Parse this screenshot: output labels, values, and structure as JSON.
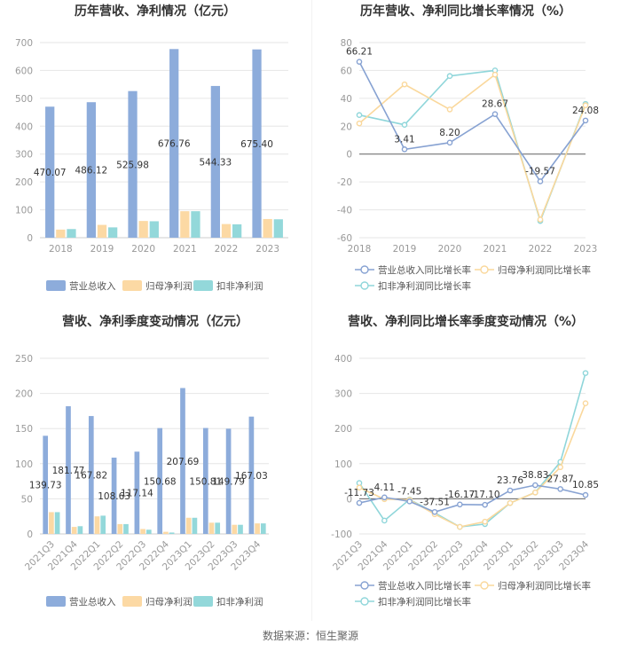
{
  "footer": "数据来源：恒生聚源",
  "colors": {
    "rev": "#8DACDB",
    "net": "#FCD9A4",
    "deduct": "#93D8DA",
    "l_rev": "#87A2D2",
    "l_net": "#FAD89C",
    "l_deduct": "#8FD6DA",
    "grid": "#E6E6E6",
    "axis": "#999999",
    "label": "#333333"
  },
  "chart_data": [
    {
      "id": "annual-bar",
      "type": "bar",
      "title": "历年营收、净利情况（亿元）",
      "categories": [
        "2018",
        "2019",
        "2020",
        "2021",
        "2022",
        "2023"
      ],
      "ylim": [
        0,
        700
      ],
      "yticks": [
        0,
        100,
        200,
        300,
        400,
        500,
        600,
        700
      ],
      "label_series": 0,
      "series": [
        {
          "name": "营业总收入",
          "values": [
            470.07,
            486.12,
            525.98,
            676.76,
            544.33,
            675.4
          ],
          "labels": [
            "470.07",
            "486.12",
            "525.98",
            "676.76",
            "544.33",
            "675.40"
          ]
        },
        {
          "name": "归母净利润",
          "values": [
            29,
            46,
            60,
            95,
            49,
            67
          ]
        },
        {
          "name": "扣非净利润",
          "values": [
            31,
            37,
            59,
            95,
            48,
            66
          ]
        }
      ]
    },
    {
      "id": "annual-line",
      "type": "line",
      "title": "历年营收、净利同比增长率情况（%）",
      "categories": [
        "2018",
        "2019",
        "2020",
        "2021",
        "2022",
        "2023"
      ],
      "ylim": [
        -60,
        80
      ],
      "yticks": [
        -60,
        -40,
        -20,
        0,
        20,
        40,
        60,
        80
      ],
      "label_series": 0,
      "series": [
        {
          "name": "营业总收入同比增长率",
          "values": [
            66.21,
            3.41,
            8.2,
            28.67,
            -19.57,
            24.08
          ],
          "labels": [
            "66.21",
            "3.41",
            "8.20",
            "28.67",
            "-19.57",
            "24.08"
          ]
        },
        {
          "name": "归母净利润同比增长率",
          "values": [
            22,
            50,
            32,
            57,
            -47,
            35
          ]
        },
        {
          "name": "扣非净利润同比增长率",
          "values": [
            28,
            21,
            56,
            60,
            -48,
            36
          ]
        }
      ]
    },
    {
      "id": "quarter-bar",
      "type": "bar",
      "title": "营收、净利季度变动情况（亿元）",
      "categories": [
        "2021Q3",
        "2021Q4",
        "2022Q1",
        "2022Q2",
        "2022Q3",
        "2022Q4",
        "2023Q1",
        "2023Q2",
        "2023Q3",
        "2023Q4"
      ],
      "ylim": [
        0,
        250
      ],
      "yticks": [
        0,
        50,
        100,
        150,
        200,
        250
      ],
      "label_series": 0,
      "series": [
        {
          "name": "营业总收入",
          "values": [
            139.73,
            181.77,
            167.82,
            108.63,
            117.14,
            150.68,
            207.69,
            150.81,
            149.79,
            167.03
          ],
          "labels": [
            "139.73",
            "181.77",
            "167.82",
            "108.63",
            "117.14",
            "150.68",
            "207.69",
            "150.81",
            "149.79",
            "167.03"
          ]
        },
        {
          "name": "归母净利润",
          "values": [
            31,
            10,
            25,
            14,
            7,
            3,
            23,
            16,
            13,
            15
          ]
        },
        {
          "name": "扣非净利润",
          "values": [
            31,
            11,
            26,
            14,
            6,
            2,
            23,
            16,
            13,
            15
          ]
        }
      ]
    },
    {
      "id": "quarter-line",
      "type": "line",
      "title": "营收、净利同比增长率季度变动情况（%）",
      "categories": [
        "2021Q3",
        "2021Q4",
        "2022Q1",
        "2022Q2",
        "2022Q3",
        "2022Q4",
        "2023Q1",
        "2023Q2",
        "2023Q3",
        "2023Q4"
      ],
      "ylim": [
        -100,
        400
      ],
      "yticks": [
        -100,
        0,
        100,
        200,
        300,
        400
      ],
      "label_series": 0,
      "series": [
        {
          "name": "营业总收入同比增长率",
          "values": [
            -11.73,
            4.11,
            -7.45,
            -37.51,
            -16.17,
            -17.1,
            23.76,
            38.83,
            27.87,
            10.85
          ],
          "labels": [
            "-11.73",
            "4.11",
            "-7.45",
            "-37.51",
            "-16.17",
            "-17.10",
            "23.76",
            "38.83",
            "27.87",
            "10.85"
          ]
        },
        {
          "name": "归母净利润同比增长率",
          "values": [
            32,
            -1,
            -3,
            -44,
            -80,
            -65,
            -12,
            18,
            90,
            272
          ]
        },
        {
          "name": "扣非净利润同比增长率",
          "values": [
            45,
            -62,
            -2,
            -40,
            -80,
            -72,
            -12,
            18,
            105,
            358
          ]
        }
      ]
    }
  ]
}
